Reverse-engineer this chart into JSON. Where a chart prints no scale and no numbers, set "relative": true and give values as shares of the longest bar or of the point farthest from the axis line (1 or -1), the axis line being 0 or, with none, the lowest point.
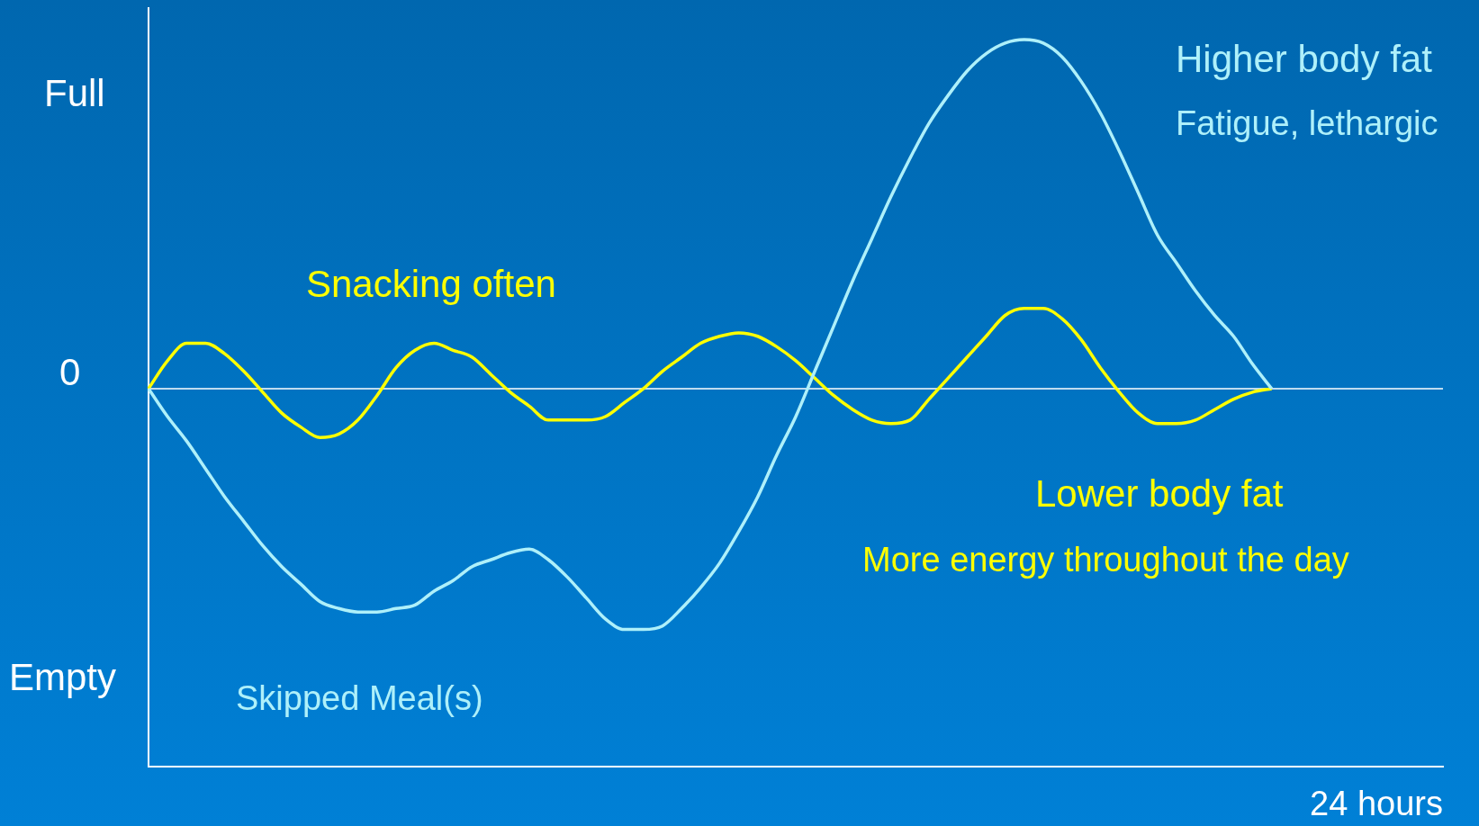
{
  "chart_data": {
    "type": "line",
    "xlabel": "24 hours",
    "categories": [
      null,
      null,
      null,
      null,
      null,
      null,
      null,
      null,
      null,
      null,
      null,
      null,
      null,
      null,
      null,
      null,
      null,
      null,
      null,
      null,
      null,
      null,
      null,
      null,
      null,
      null,
      null,
      null,
      null,
      null,
      null,
      null,
      null,
      null,
      null,
      null,
      null,
      null,
      null,
      null,
      null,
      null,
      null,
      null,
      null,
      null,
      null,
      null,
      null,
      null,
      null,
      null,
      null,
      null,
      null,
      null,
      null,
      null,
      null,
      null,
      null,
      null,
      null,
      null,
      null,
      null,
      null,
      null,
      null
    ],
    "series": [
      {
        "name": "Skipped Meal(s)",
        "color": "#aef0fa",
        "values": [
          0,
          -0.08,
          -0.15,
          -0.23,
          -0.31,
          -0.38,
          -0.45,
          -0.51,
          -0.56,
          -0.61,
          -0.63,
          -0.64,
          -0.64,
          -0.63,
          -0.62,
          -0.58,
          -0.55,
          -0.51,
          -0.49,
          -0.47,
          -0.46,
          -0.49,
          -0.54,
          -0.6,
          -0.66,
          -0.69,
          -0.69,
          -0.68,
          -0.63,
          -0.57,
          -0.5,
          -0.41,
          -0.31,
          -0.19,
          -0.08,
          0.05,
          0.18,
          0.31,
          0.43,
          0.55,
          0.66,
          0.76,
          0.84,
          0.91,
          0.96,
          0.99,
          1,
          0.99,
          0.95,
          0.88,
          0.79,
          0.68,
          0.56,
          0.44,
          0.36,
          0.28,
          0.21,
          0.15,
          0.07,
          0,
          null,
          null,
          null,
          null,
          null,
          null,
          null,
          null,
          null
        ]
      },
      {
        "name": "Snacking often",
        "color": "#ffff00",
        "values": [
          0,
          0.08,
          0.13,
          0.13,
          0.1,
          0.05,
          -0.01,
          -0.07,
          -0.11,
          -0.14,
          -0.13,
          -0.09,
          -0.02,
          0.06,
          0.11,
          0.13,
          0.11,
          0.09,
          0.04,
          -0.01,
          -0.05,
          -0.09,
          -0.09,
          -0.09,
          -0.08,
          -0.04,
          0,
          0.05,
          0.09,
          0.13,
          0.15,
          0.16,
          0.15,
          0.12,
          0.08,
          0.03,
          -0.02,
          -0.06,
          -0.09,
          -0.1,
          -0.09,
          -0.03,
          0.03,
          0.09,
          0.15,
          0.21,
          0.23,
          0.23,
          0.2,
          0.14,
          0.06,
          -0.01,
          -0.07,
          -0.1,
          -0.1,
          -0.09,
          -0.06,
          -0.03,
          -0.01,
          0,
          null,
          null,
          null,
          null,
          null,
          null,
          null,
          null,
          null
        ]
      }
    ],
    "relative": true,
    "ref_lines": [
      {
        "axis": "y",
        "value": 0,
        "color": "#ffffff"
      }
    ],
    "legend": false,
    "marker": "none",
    "line_style": "solid",
    "annotations": [
      "Higher body fat",
      "Fatigue, lethargic",
      "Lower body fat",
      "More energy throughout the day",
      "Full",
      "0",
      "Empty"
    ]
  }
}
